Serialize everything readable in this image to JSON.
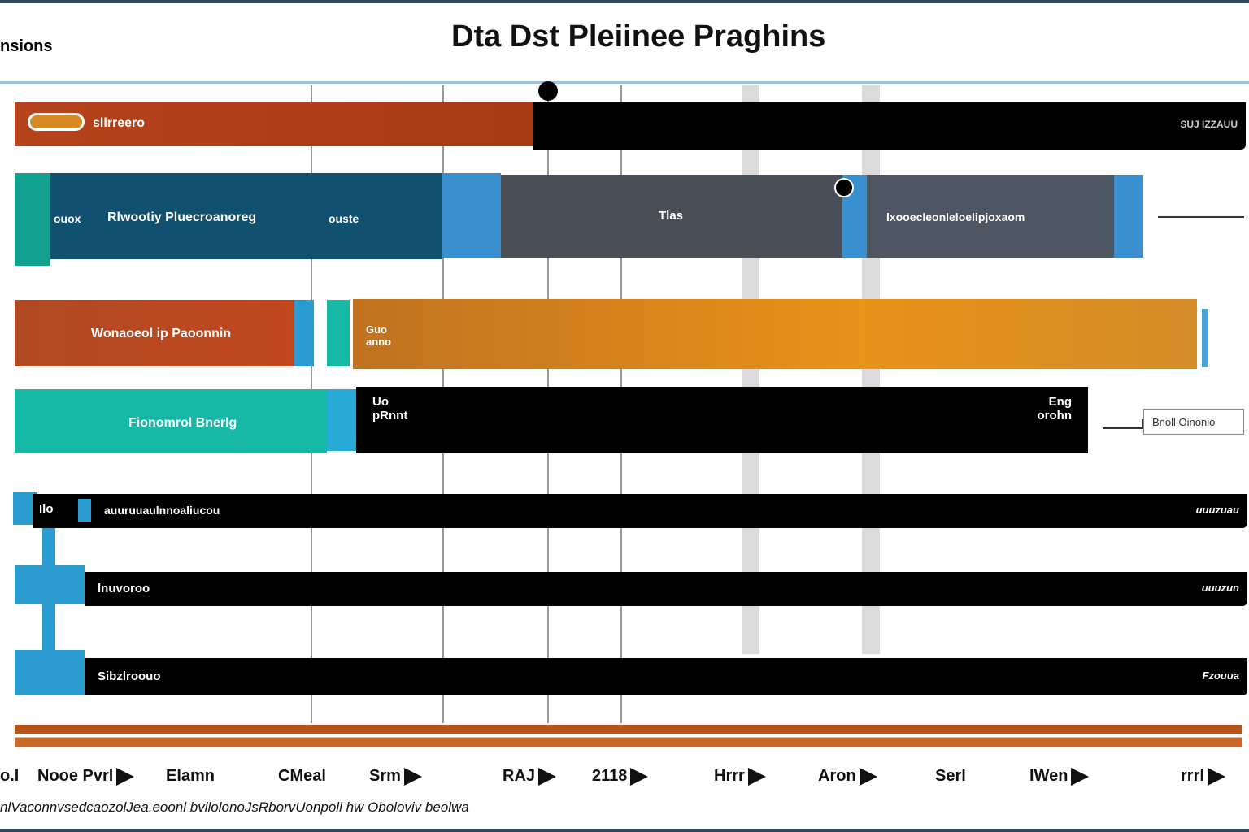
{
  "title": "Dta Dst Pleiinee Praghins",
  "corner_label": "nsions",
  "rows": [
    {
      "label": "sllrreero",
      "right": "SUJ IZZAUU",
      "color": "#b5431c"
    },
    {
      "prefix": "ouox",
      "label": "Rlwootiy Pluecroanoreg",
      "suffix": "ouste",
      "mid": "Tlas",
      "right": "lxooecleonleloelipjoxaom",
      "color": "#11506e"
    },
    {
      "label": "Wonaoeol ip Paoonnin",
      "mid": "Guo anno",
      "color": "#b8461e",
      "accent": "#e0921a"
    },
    {
      "label": "Fionomrol Bnerlg",
      "mid_a": "Uo pRnnt",
      "mid_b": "Eng orohn",
      "callout": "Bnoll Oinonio",
      "color": "#18b8a6"
    },
    {
      "tag": "Ilo",
      "label": "auuruuaulnnoaliucou",
      "right": "uuuzuau"
    },
    {
      "label": "lnuvoroo",
      "right": "uuuzun"
    },
    {
      "label": "Sibzlroouo",
      "right": "Fzouua"
    }
  ],
  "axis_ticks": [
    "o.l",
    "Nooe Pvrl",
    "Elamn",
    "CMeal",
    "Srm",
    "RAJ",
    "2118",
    "Hrrr",
    "Aron",
    "Serl",
    "lWen",
    "rrrl"
  ],
  "footnote": "nlVaconnvsedcaozolJea.eoonl bvllolonoJsRborvUonpoll hw Oboloviv beolwa"
}
